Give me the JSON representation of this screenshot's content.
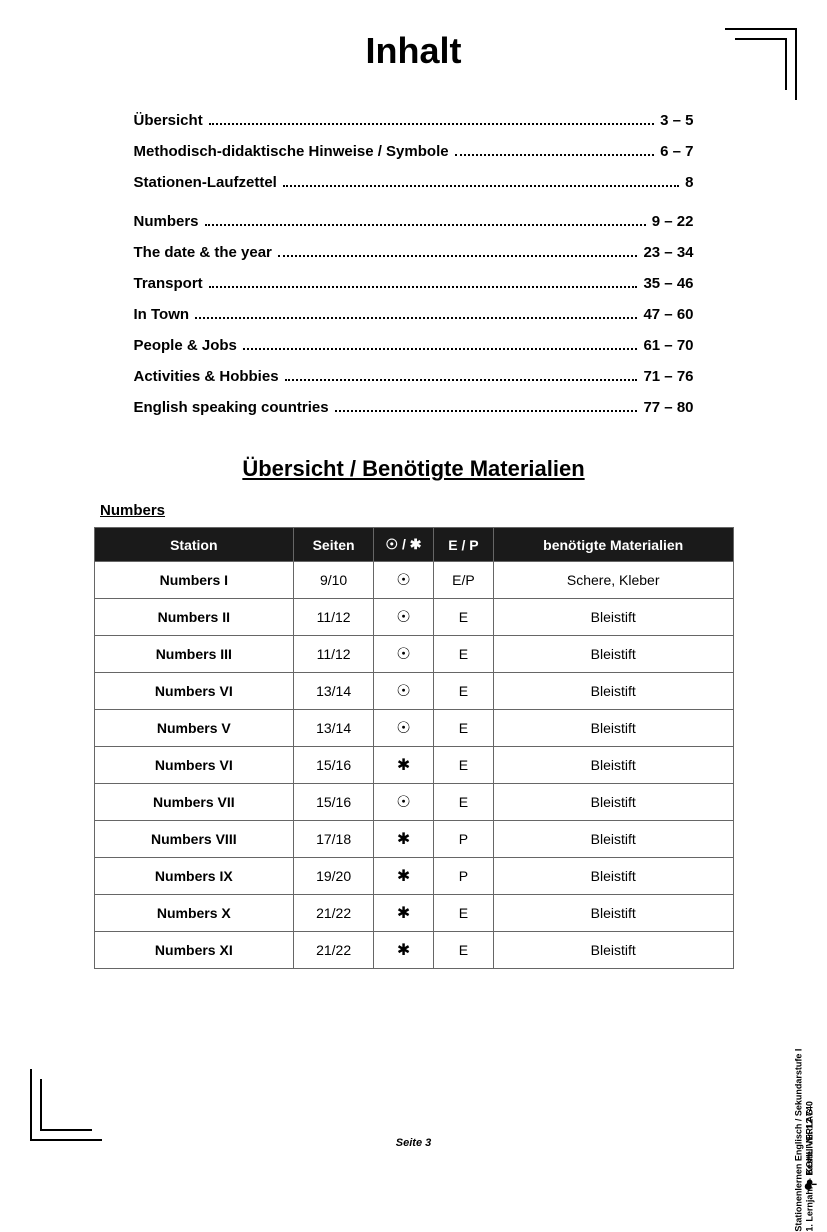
{
  "title": "Inhalt",
  "toc_group1": [
    {
      "label": "Übersicht",
      "pages": "3 – 5"
    },
    {
      "label": "Methodisch-didaktische Hinweise / Symbole",
      "pages": "6 – 7"
    },
    {
      "label": "Stationen-Laufzettel",
      "pages": "8"
    }
  ],
  "toc_group2": [
    {
      "label": "Numbers",
      "pages": "9 – 22"
    },
    {
      "label": "The date & the year",
      "pages": "23 – 34"
    },
    {
      "label": "Transport",
      "pages": "35 – 46"
    },
    {
      "label": "In Town",
      "pages": "47 – 60"
    },
    {
      "label": "People & Jobs",
      "pages": "61 – 70"
    },
    {
      "label": "Activities & Hobbies",
      "pages": "71 – 76"
    },
    {
      "label": "English speaking countries",
      "pages": "77 – 80"
    }
  ],
  "subtitle": "Übersicht / Benötigte Materialien",
  "section_heading": "Numbers",
  "table": {
    "headers": {
      "station": "Station",
      "seiten": "Seiten",
      "symbol": "☉ / ✱",
      "ep": "E / P",
      "materialien": "benötigte Materialien"
    },
    "col_widths": [
      "200px",
      "80px",
      "60px",
      "60px",
      "240px"
    ],
    "rows": [
      {
        "station": "Numbers I",
        "seiten": "9/10",
        "symbol": "dot",
        "ep": "E/P",
        "mat": "Schere, Kleber"
      },
      {
        "station": "Numbers II",
        "seiten": "11/12",
        "symbol": "dot",
        "ep": "E",
        "mat": "Bleistift"
      },
      {
        "station": "Numbers III",
        "seiten": "11/12",
        "symbol": "dot",
        "ep": "E",
        "mat": "Bleistift"
      },
      {
        "station": "Numbers VI",
        "seiten": "13/14",
        "symbol": "dot",
        "ep": "E",
        "mat": "Bleistift"
      },
      {
        "station": "Numbers V",
        "seiten": "13/14",
        "symbol": "dot",
        "ep": "E",
        "mat": "Bleistift"
      },
      {
        "station": "Numbers VI",
        "seiten": "15/16",
        "symbol": "star",
        "ep": "E",
        "mat": "Bleistift"
      },
      {
        "station": "Numbers VII",
        "seiten": "15/16",
        "symbol": "dot",
        "ep": "E",
        "mat": "Bleistift"
      },
      {
        "station": "Numbers VIII",
        "seiten": "17/18",
        "symbol": "star",
        "ep": "P",
        "mat": "Bleistift"
      },
      {
        "station": "Numbers IX",
        "seiten": "19/20",
        "symbol": "star",
        "ep": "P",
        "mat": "Bleistift"
      },
      {
        "station": "Numbers X",
        "seiten": "21/22",
        "symbol": "star",
        "ep": "E",
        "mat": "Bleistift"
      },
      {
        "station": "Numbers XI",
        "seiten": "21/22",
        "symbol": "star",
        "ep": "E",
        "mat": "Bleistift"
      }
    ]
  },
  "symbols": {
    "dot": "☉",
    "star": "✱"
  },
  "footer": "Seite 3",
  "side": {
    "line1": "Stationenlernen Englisch / Sekundarstufe I",
    "line2": "1. Lernjahr  –  Bestell-Nr. 12 740",
    "publisher": "KOHL VERLAG"
  },
  "colors": {
    "header_bg": "#1a1a1a",
    "header_fg": "#ffffff",
    "border": "#666666",
    "text": "#000000",
    "bg": "#ffffff"
  }
}
